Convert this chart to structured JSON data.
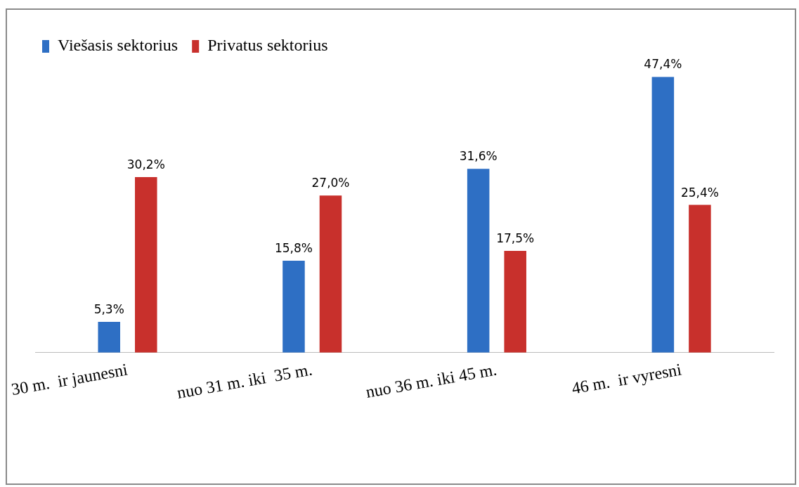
{
  "chart_data": {
    "type": "bar",
    "categories": [
      "30 m.  ir jaunesni",
      "nuo 31 m. iki  35 m.",
      "nuo 36 m. iki 45 m.",
      "46 m.  ir vyresni"
    ],
    "series": [
      {
        "name": "Viešasis sektorius",
        "color": "#2e6fc4",
        "values": [
          5.3,
          15.8,
          31.6,
          47.4
        ],
        "value_labels": [
          "5,3%",
          "15,8%",
          "31,6%",
          "47,4%"
        ]
      },
      {
        "name": "Privatus sektorius",
        "color": "#c8302c",
        "values": [
          30.2,
          27.0,
          17.5,
          25.4
        ],
        "value_labels": [
          "30,2%",
          "27,0%",
          "17,5%",
          "25,4%"
        ]
      }
    ],
    "legend": "top left",
    "grid": false
  }
}
